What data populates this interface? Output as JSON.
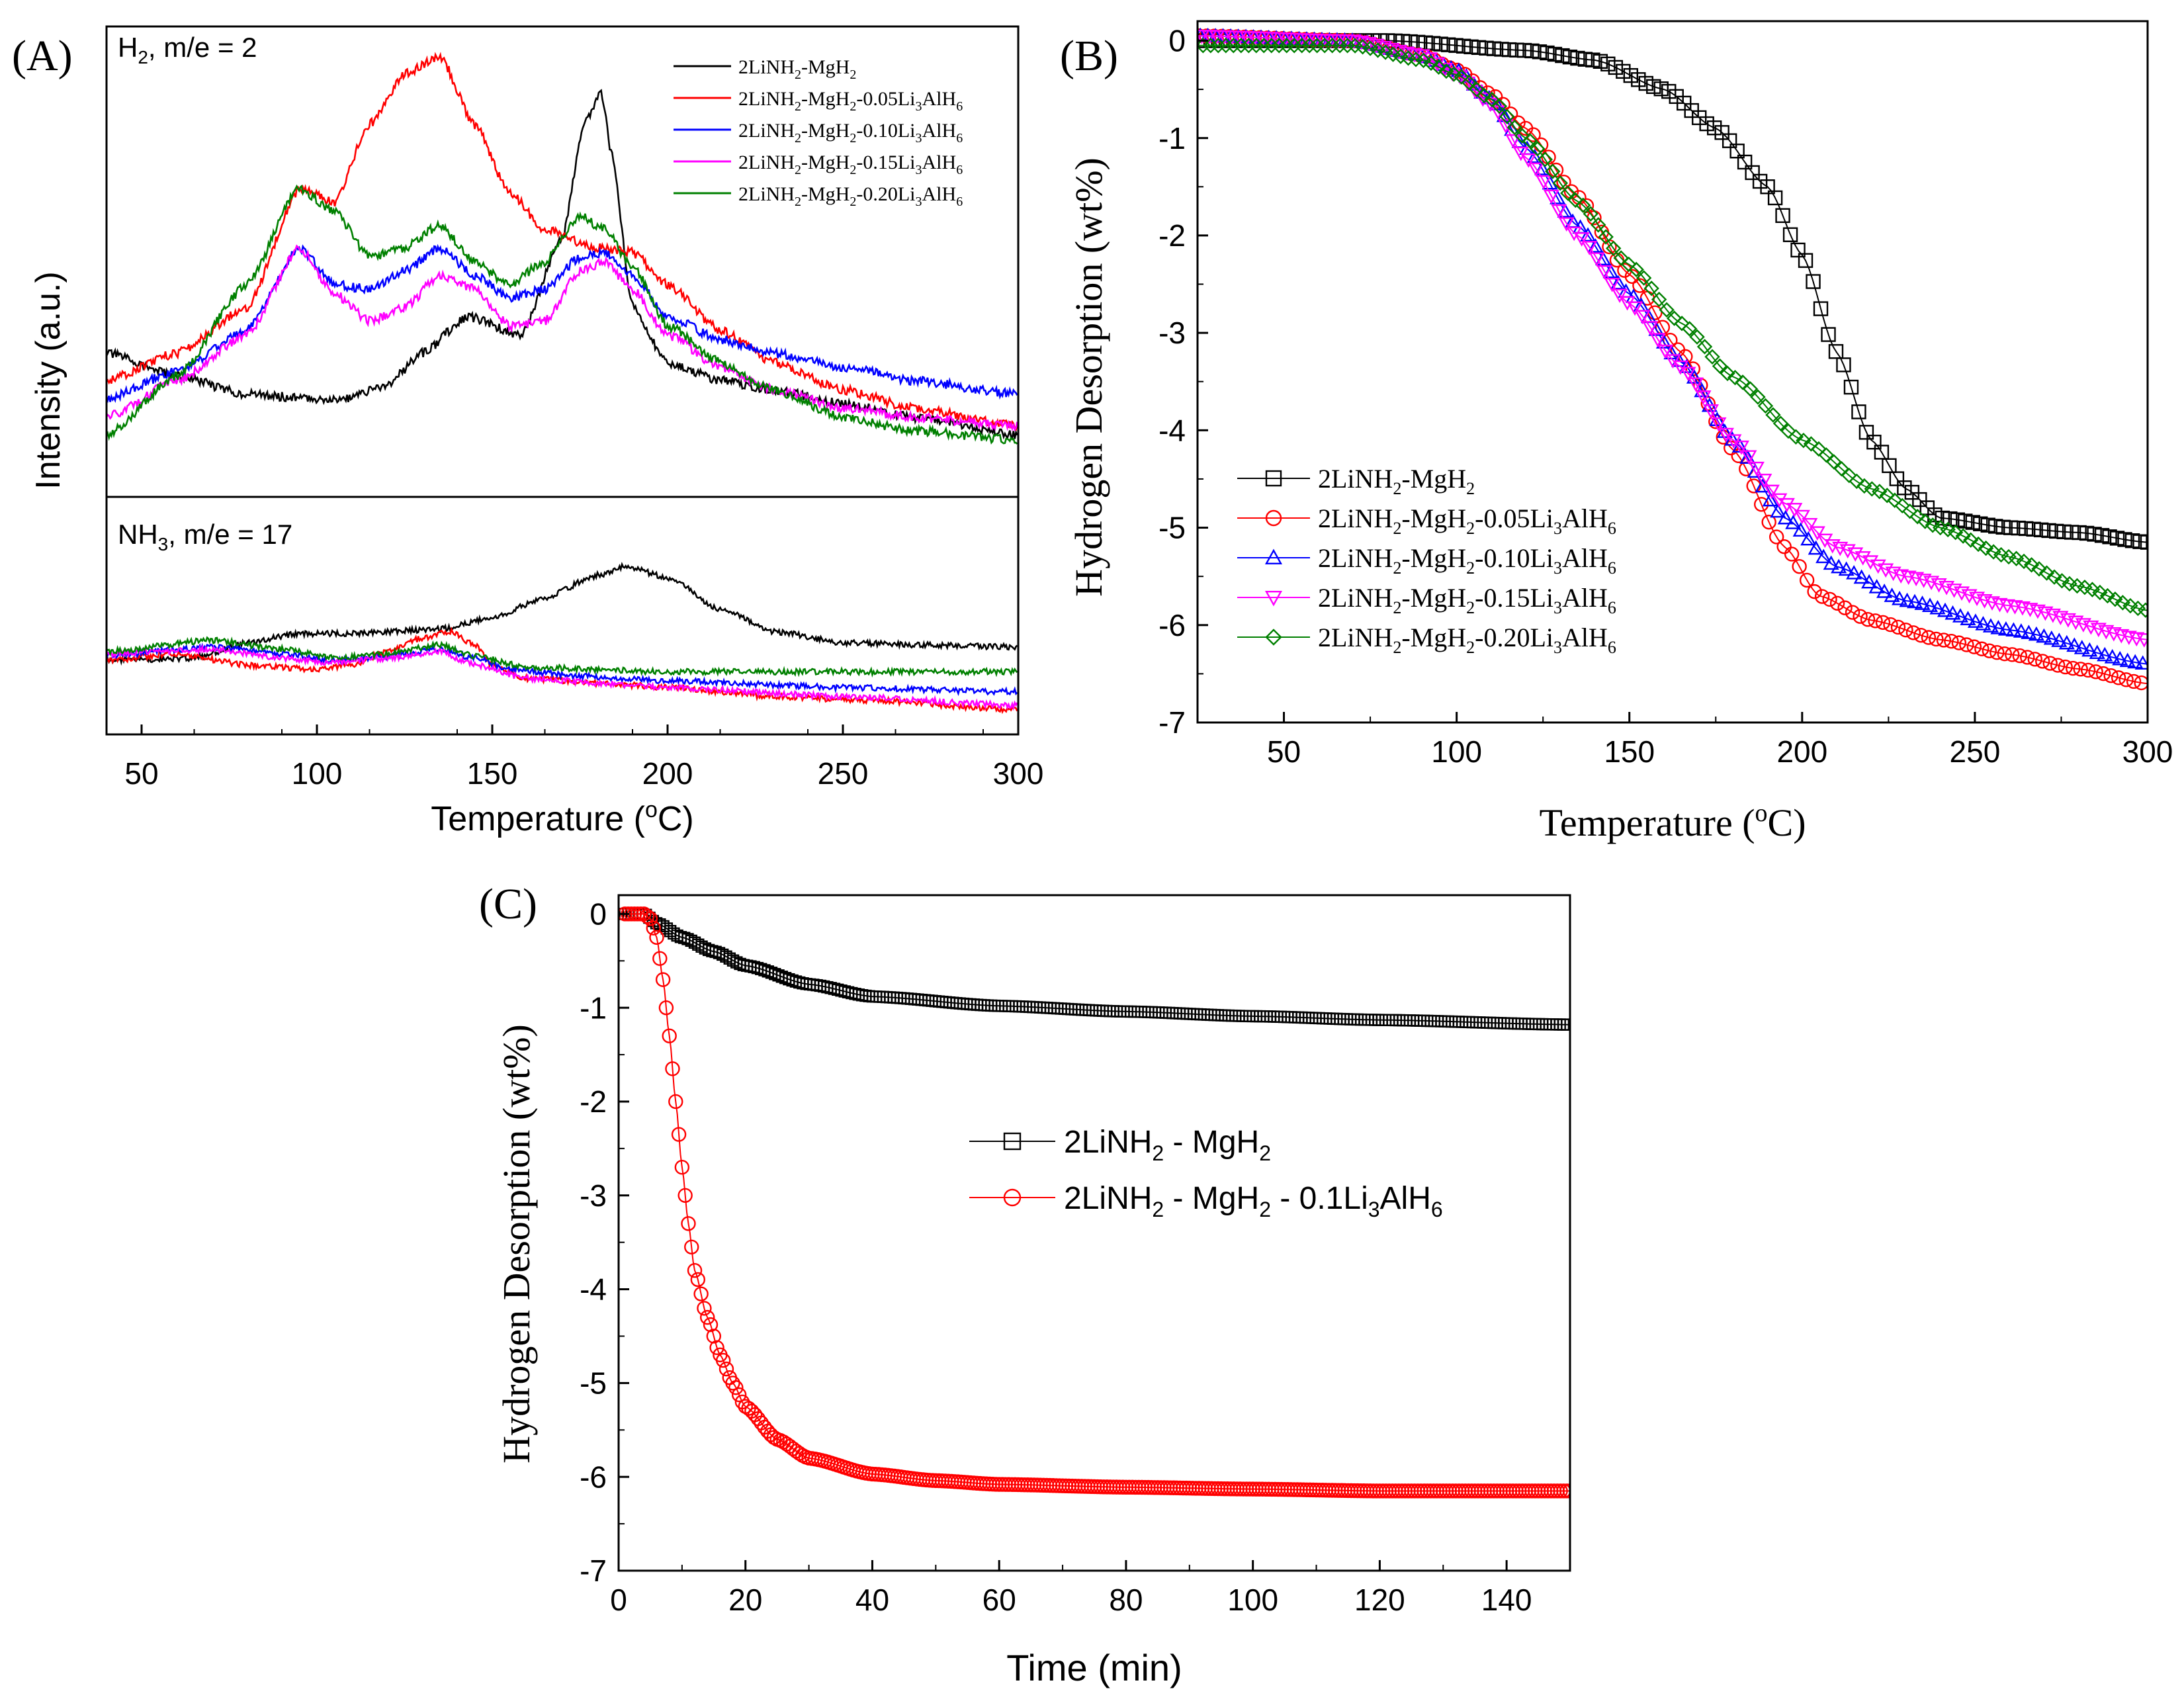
{
  "figure": {
    "panels": [
      "(A)",
      "(B)",
      "(C)"
    ]
  },
  "chart_data": [
    {
      "id": "A",
      "type": "line",
      "panel_label": "(A)",
      "xlabel": "Temperature (oC)",
      "ylabel": "Intensity (a.u.)",
      "xlim": [
        40,
        300
      ],
      "xticks": [
        50,
        100,
        150,
        200,
        250,
        300
      ],
      "subplots": [
        {
          "title": "H2, m/e = 2",
          "ylim": [
            0,
            100
          ],
          "series": [
            {
              "name": "2LiNH2-MgH2",
              "color": "#000000",
              "x": [
                40,
                60,
                80,
                100,
                108,
                120,
                130,
                143,
                158,
                170,
                176,
                181,
                184,
                190,
                200,
                215,
                230,
                250,
                270,
                300
              ],
              "y": [
                30,
                25,
                21,
                20,
                20,
                23,
                30,
                38,
                34,
                55,
                80,
                87,
                74,
                40,
                28,
                24,
                22,
                19,
                16,
                12
              ]
            },
            {
              "name": "2LiNH2-MgH2-0.05Li3AlH6",
              "color": "#ff0000",
              "x": [
                40,
                60,
                80,
                95,
                105,
                115,
                125,
                135,
                145,
                155,
                165,
                180,
                190,
                200,
                215,
                230,
                250,
                270,
                300
              ],
              "y": [
                24,
                30,
                40,
                66,
                63,
                80,
                91,
                95,
                80,
                65,
                57,
                53,
                52,
                45,
                35,
                28,
                22,
                18,
                14
              ]
            },
            {
              "name": "2LiNH2-MgH2-0.10Li3AlH6",
              "color": "#0000ff",
              "x": [
                40,
                60,
                80,
                95,
                105,
                115,
                125,
                135,
                145,
                155,
                165,
                175,
                182,
                190,
                200,
                215,
                230,
                250,
                270,
                300
              ],
              "y": [
                20,
                26,
                35,
                53,
                45,
                44,
                48,
                53,
                47,
                42,
                44,
                51,
                52,
                47,
                38,
                33,
                30,
                27,
                24,
                21
              ]
            },
            {
              "name": "2LiNH2-MgH2-0.15Li3AlH6",
              "color": "#ff00ff",
              "x": [
                40,
                60,
                80,
                95,
                105,
                115,
                125,
                135,
                145,
                155,
                165,
                175,
                182,
                190,
                200,
                215,
                230,
                250,
                270,
                300
              ],
              "y": [
                16,
                24,
                34,
                53,
                43,
                37,
                40,
                47,
                44,
                36,
                37,
                48,
                50,
                44,
                34,
                27,
                22,
                18,
                16,
                14
              ]
            },
            {
              "name": "2LiNH2-MgH2-0.20Li3AlH6",
              "color": "#008000",
              "x": [
                40,
                60,
                80,
                95,
                105,
                115,
                125,
                135,
                145,
                155,
                165,
                175,
                182,
                190,
                200,
                215,
                230,
                250,
                270,
                300
              ],
              "y": [
                12,
                25,
                45,
                66,
                61,
                51,
                53,
                58,
                50,
                45,
                50,
                60,
                57,
                49,
                36,
                28,
                22,
                16,
                13,
                11
              ]
            }
          ]
        },
        {
          "title": "NH3, m/e = 17",
          "ylim": [
            0,
            100
          ],
          "series": [
            {
              "name": "2LiNH2-MgH2",
              "color": "#000000",
              "x": [
                40,
                65,
                80,
                95,
                110,
                135,
                150,
                165,
                180,
                188,
                200,
                215,
                230,
                250,
                270,
                300
              ],
              "y": [
                30,
                31,
                38,
                42,
                42,
                44,
                49,
                58,
                68,
                72,
                67,
                53,
                43,
                38,
                37,
                36
              ]
            },
            {
              "name": "2LiNH2-MgH2-0.05Li3AlH6",
              "color": "#ff0000",
              "x": [
                40,
                60,
                80,
                100,
                110,
                120,
                130,
                138,
                145,
                150,
                160,
                180,
                200,
                230,
                260,
                300
              ],
              "y": [
                30,
                33,
                28,
                26,
                28,
                34,
                40,
                43,
                37,
                28,
                22,
                20,
                18,
                14,
                12,
                8
              ]
            },
            {
              "name": "2LiNH2-MgH2-0.10Li3AlH6",
              "color": "#0000ff",
              "x": [
                40,
                70,
                90,
                105,
                120,
                135,
                145,
                155,
                175,
                200,
                250,
                300
              ],
              "y": [
                32,
                36,
                33,
                30,
                32,
                35,
                31,
                26,
                23,
                21,
                18,
                16
              ]
            },
            {
              "name": "2LiNH2-MgH2-0.15Li3AlH6",
              "color": "#ff00ff",
              "x": [
                40,
                70,
                90,
                105,
                120,
                135,
                145,
                160,
                200,
                250,
                300
              ],
              "y": [
                33,
                35,
                31,
                29,
                31,
                34,
                28,
                22,
                18,
                14,
                10
              ]
            },
            {
              "name": "2LiNH2-MgH2-0.20Li3AlH6",
              "color": "#008000",
              "x": [
                40,
                70,
                90,
                105,
                120,
                135,
                145,
                160,
                200,
                250,
                300
              ],
              "y": [
                34,
                39,
                35,
                31,
                33,
                37,
                32,
                27,
                25,
                25,
                25
              ]
            }
          ]
        }
      ]
    },
    {
      "id": "B",
      "type": "scatter-line",
      "panel_label": "(B)",
      "xlabel": "Temperature (oC)",
      "ylabel": "Hydrogen Desorption (wt%)",
      "xlim": [
        25,
        300
      ],
      "ylim": [
        -7,
        0.2
      ],
      "xticks": [
        50,
        100,
        150,
        200,
        250,
        300
      ],
      "yticks": [
        0,
        -1,
        -2,
        -3,
        -4,
        -5,
        -6,
        -7
      ],
      "legend_position": "bottom-left",
      "series": [
        {
          "name": "2LiNH2-MgH2",
          "color": "#000000",
          "marker": "square",
          "x": [
            25,
            80,
            120,
            140,
            160,
            175,
            190,
            200,
            210,
            220,
            230,
            240,
            260,
            280,
            300
          ],
          "y": [
            0.0,
            0.0,
            -0.1,
            -0.2,
            -0.5,
            -0.9,
            -1.5,
            -2.2,
            -3.2,
            -4.1,
            -4.6,
            -4.9,
            -5.0,
            -5.05,
            -5.15
          ]
        },
        {
          "name": "2LiNH2-MgH2-0.05Li3AlH6",
          "color": "#ff0000",
          "marker": "circle",
          "x": [
            25,
            70,
            90,
            100,
            110,
            120,
            135,
            150,
            165,
            180,
            195,
            205,
            220,
            240,
            260,
            280,
            300
          ],
          "y": [
            0.05,
            0.0,
            -0.15,
            -0.3,
            -0.55,
            -0.9,
            -1.6,
            -2.4,
            -3.2,
            -4.2,
            -5.2,
            -5.7,
            -5.95,
            -6.15,
            -6.3,
            -6.45,
            -6.6
          ]
        },
        {
          "name": "2LiNH2-MgH2-0.10Li3AlH6",
          "color": "#0000ff",
          "marker": "triangle-up",
          "x": [
            25,
            70,
            90,
            100,
            110,
            120,
            135,
            150,
            165,
            180,
            195,
            210,
            230,
            260,
            300
          ],
          "y": [
            0.05,
            0.0,
            -0.15,
            -0.3,
            -0.6,
            -1.1,
            -1.9,
            -2.6,
            -3.3,
            -4.1,
            -4.9,
            -5.4,
            -5.75,
            -6.05,
            -6.4
          ]
        },
        {
          "name": "2LiNH2-MgH2-0.15Li3AlH6",
          "color": "#ff00ff",
          "marker": "triangle-down",
          "x": [
            25,
            70,
            90,
            100,
            110,
            120,
            135,
            150,
            165,
            180,
            195,
            210,
            230,
            260,
            300
          ],
          "y": [
            0.05,
            0.0,
            -0.15,
            -0.35,
            -0.65,
            -1.2,
            -2.0,
            -2.7,
            -3.35,
            -4.1,
            -4.75,
            -5.2,
            -5.5,
            -5.8,
            -6.15
          ]
        },
        {
          "name": "2LiNH2-MgH2-0.20Li3AlH6",
          "color": "#008000",
          "marker": "diamond",
          "x": [
            25,
            70,
            90,
            100,
            110,
            120,
            135,
            150,
            165,
            180,
            200,
            220,
            240,
            260,
            280,
            300
          ],
          "y": [
            -0.05,
            -0.05,
            -0.2,
            -0.35,
            -0.6,
            -1.0,
            -1.65,
            -2.3,
            -2.9,
            -3.45,
            -4.1,
            -4.6,
            -5.0,
            -5.3,
            -5.6,
            -5.85
          ]
        }
      ]
    },
    {
      "id": "C",
      "type": "scatter-line",
      "panel_label": "(C)",
      "xlabel": "Time (min)",
      "ylabel": "Hydrogen Desorption (wt%)",
      "xlim": [
        0,
        150
      ],
      "ylim": [
        -7,
        0.2
      ],
      "xticks": [
        0,
        20,
        40,
        60,
        80,
        100,
        120,
        140
      ],
      "yticks": [
        0,
        -1,
        -2,
        -3,
        -4,
        -5,
        -6,
        -7
      ],
      "legend_position": "center-right",
      "series": [
        {
          "name": "2LiNH2 - MgH2",
          "color": "#000000",
          "marker": "square",
          "x": [
            0,
            2,
            4,
            6,
            10,
            15,
            20,
            30,
            40,
            60,
            80,
            100,
            120,
            150
          ],
          "y": [
            0,
            0,
            0,
            -0.1,
            -0.25,
            -0.4,
            -0.55,
            -0.75,
            -0.88,
            -0.98,
            -1.04,
            -1.09,
            -1.13,
            -1.18
          ]
        },
        {
          "name": "2LiNH2 - MgH2 - 0.1Li3AlH6",
          "color": "#ff0000",
          "marker": "circle",
          "x": [
            0,
            2,
            4,
            5,
            6,
            7,
            8,
            9,
            10,
            11,
            12,
            14,
            16,
            18,
            20,
            25,
            30,
            40,
            50,
            60,
            80,
            100,
            120,
            150
          ],
          "y": [
            0,
            0,
            0,
            -0.05,
            -0.25,
            -0.7,
            -1.3,
            -2.0,
            -2.7,
            -3.3,
            -3.8,
            -4.3,
            -4.7,
            -5.0,
            -5.25,
            -5.6,
            -5.8,
            -5.97,
            -6.04,
            -6.08,
            -6.11,
            -6.13,
            -6.15,
            -6.15
          ]
        }
      ]
    }
  ]
}
